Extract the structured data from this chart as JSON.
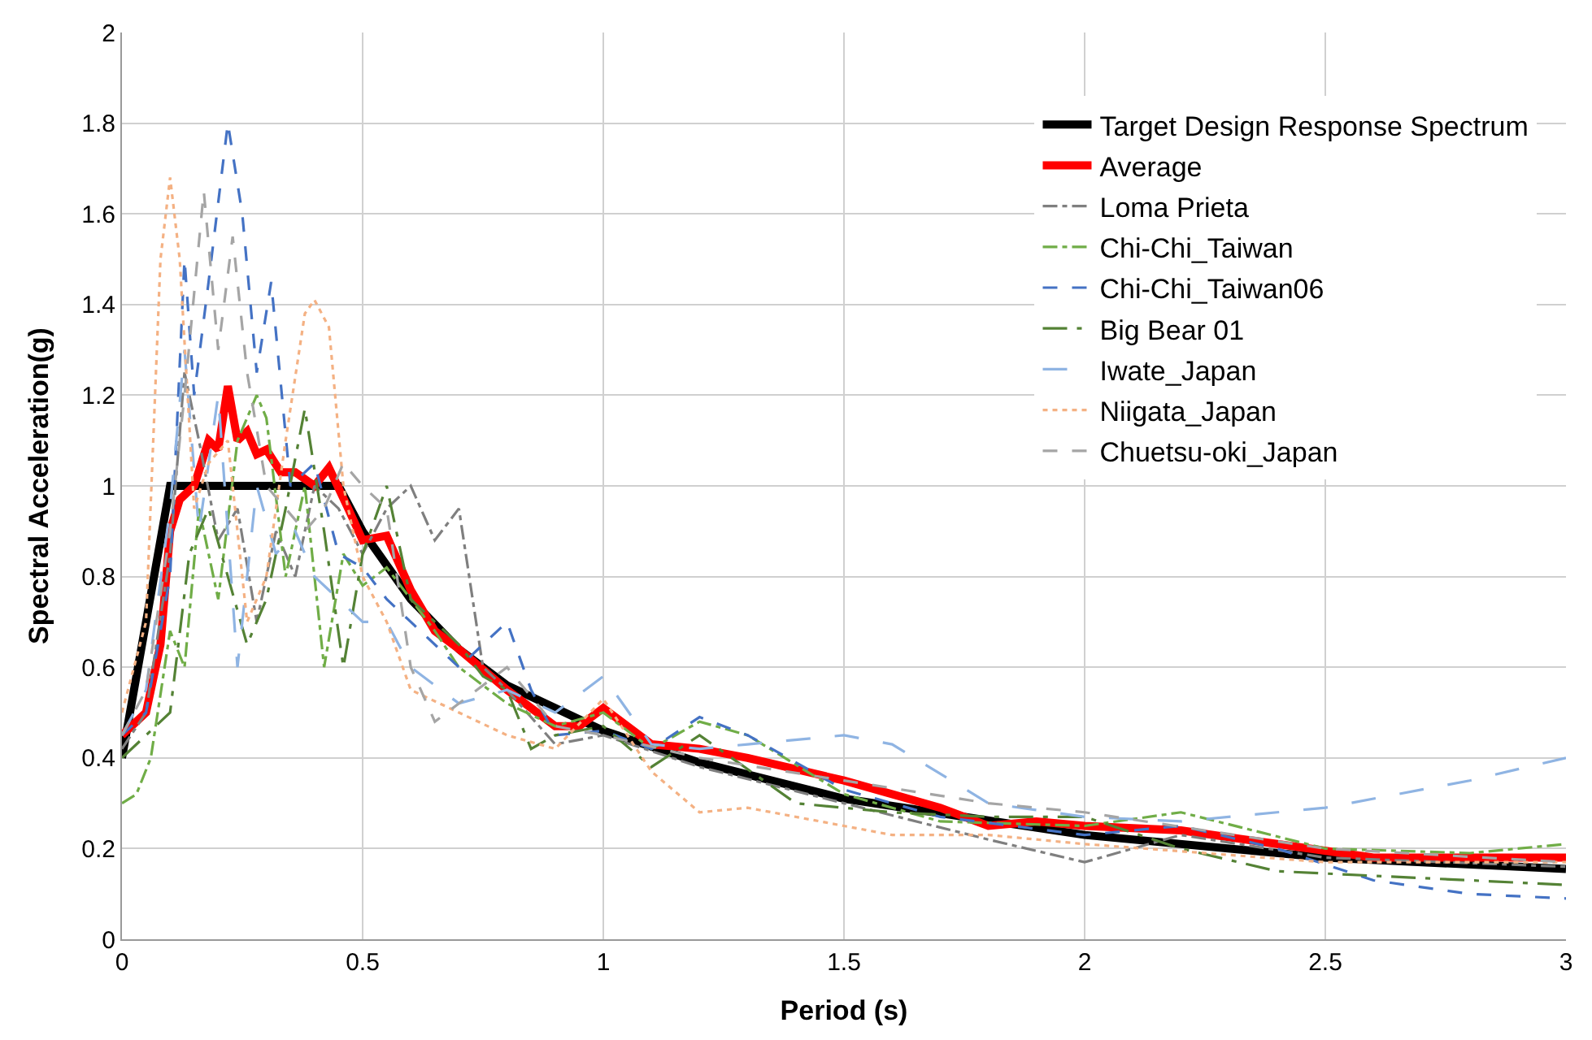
{
  "chart_data": {
    "type": "line",
    "xlabel": "Period (s)",
    "ylabel": "Spectral Acceleration(g)",
    "xlim": [
      0,
      3
    ],
    "ylim": [
      0,
      2
    ],
    "xticks": [
      0,
      0.5,
      1,
      1.5,
      2,
      2.5,
      3
    ],
    "yticks": [
      0,
      0.2,
      0.4,
      0.6,
      0.8,
      1,
      1.2,
      1.4,
      1.6,
      1.8,
      2
    ],
    "grid": true,
    "legend": "top right",
    "marker": "none",
    "series": [
      {
        "name": "Target Design Response Spectrum",
        "color": "#000000",
        "line_style": "solid",
        "x": [
          0,
          0.1,
          0.45,
          0.5,
          0.6,
          0.7,
          0.8,
          1.0,
          1.2,
          1.5,
          2.0,
          2.5,
          3.0
        ],
        "values": [
          0.4,
          1.0,
          1.0,
          0.9,
          0.75,
          0.64,
          0.56,
          0.46,
          0.39,
          0.31,
          0.23,
          0.18,
          0.155
        ]
      },
      {
        "name": "Average",
        "color": "#ff0000",
        "line_style": "solid",
        "x": [
          0,
          0.05,
          0.08,
          0.1,
          0.12,
          0.15,
          0.18,
          0.2,
          0.22,
          0.24,
          0.26,
          0.28,
          0.3,
          0.33,
          0.36,
          0.4,
          0.43,
          0.47,
          0.5,
          0.55,
          0.6,
          0.65,
          0.7,
          0.8,
          0.9,
          0.95,
          1.0,
          1.1,
          1.2,
          1.3,
          1.5,
          1.7,
          1.8,
          1.9,
          2.0,
          2.2,
          2.4,
          2.6,
          3.0
        ],
        "values": [
          0.45,
          0.5,
          0.65,
          0.9,
          0.97,
          1.0,
          1.1,
          1.08,
          1.22,
          1.1,
          1.12,
          1.07,
          1.08,
          1.03,
          1.03,
          1.0,
          1.04,
          0.95,
          0.88,
          0.89,
          0.77,
          0.68,
          0.64,
          0.55,
          0.47,
          0.47,
          0.51,
          0.43,
          0.42,
          0.4,
          0.35,
          0.29,
          0.25,
          0.26,
          0.25,
          0.24,
          0.21,
          0.18,
          0.18
        ]
      },
      {
        "name": "Loma Prieta",
        "color": "#7f7f7f",
        "line_style": "dashdot",
        "x": [
          0,
          0.05,
          0.1,
          0.13,
          0.16,
          0.2,
          0.24,
          0.28,
          0.32,
          0.36,
          0.4,
          0.45,
          0.5,
          0.55,
          0.6,
          0.65,
          0.7,
          0.75,
          0.8,
          0.9,
          1.0,
          1.2,
          1.5,
          1.8,
          2.0,
          2.2,
          2.5,
          3.0
        ],
        "values": [
          0.42,
          0.5,
          0.85,
          1.25,
          1.1,
          0.88,
          0.95,
          0.7,
          0.9,
          0.8,
          1.0,
          0.95,
          0.85,
          0.95,
          1.0,
          0.88,
          0.95,
          0.6,
          0.55,
          0.43,
          0.45,
          0.38,
          0.3,
          0.22,
          0.17,
          0.23,
          0.18,
          0.16
        ]
      },
      {
        "name": "Chi-Chi_Taiwan",
        "color": "#70ad47",
        "line_style": "dashdot",
        "x": [
          0,
          0.03,
          0.06,
          0.1,
          0.13,
          0.16,
          0.2,
          0.24,
          0.28,
          0.3,
          0.34,
          0.38,
          0.42,
          0.46,
          0.5,
          0.55,
          0.6,
          0.65,
          0.7,
          0.8,
          0.9,
          1.0,
          1.1,
          1.2,
          1.3,
          1.5,
          1.7,
          2.0,
          2.2,
          2.5,
          2.8,
          3.0
        ],
        "values": [
          0.3,
          0.32,
          0.4,
          0.68,
          0.6,
          0.95,
          0.75,
          1.1,
          1.2,
          1.15,
          0.8,
          1.0,
          0.6,
          0.85,
          0.78,
          0.82,
          0.75,
          0.68,
          0.6,
          0.52,
          0.47,
          0.5,
          0.42,
          0.48,
          0.45,
          0.32,
          0.26,
          0.25,
          0.28,
          0.2,
          0.19,
          0.21
        ]
      },
      {
        "name": "Chi-Chi_Taiwan06",
        "color": "#4472c4",
        "line_style": "dashed",
        "x": [
          0,
          0.05,
          0.1,
          0.13,
          0.15,
          0.18,
          0.22,
          0.25,
          0.28,
          0.31,
          0.35,
          0.4,
          0.45,
          0.5,
          0.55,
          0.6,
          0.7,
          0.75,
          0.8,
          0.85,
          0.9,
          1.0,
          1.1,
          1.2,
          1.3,
          1.5,
          1.7,
          2.0,
          2.2,
          2.4,
          2.6,
          2.8,
          3.0
        ],
        "values": [
          0.45,
          0.5,
          0.8,
          1.5,
          1.2,
          1.45,
          1.8,
          1.6,
          1.25,
          1.45,
          1.0,
          1.05,
          0.85,
          0.82,
          0.75,
          0.7,
          0.6,
          0.65,
          0.7,
          0.55,
          0.45,
          0.46,
          0.42,
          0.49,
          0.45,
          0.33,
          0.27,
          0.23,
          0.25,
          0.2,
          0.13,
          0.1,
          0.09
        ]
      },
      {
        "name": "Big Bear 01",
        "color": "#548235",
        "line_style": "longdashdot",
        "x": [
          0,
          0.05,
          0.1,
          0.14,
          0.18,
          0.22,
          0.26,
          0.3,
          0.34,
          0.38,
          0.42,
          0.46,
          0.5,
          0.55,
          0.6,
          0.65,
          0.7,
          0.75,
          0.8,
          0.85,
          0.9,
          1.0,
          1.1,
          1.2,
          1.4,
          1.6,
          1.8,
          2.0,
          2.2,
          2.4,
          2.6,
          3.0
        ],
        "values": [
          0.4,
          0.45,
          0.5,
          0.85,
          0.95,
          0.8,
          0.65,
          0.75,
          0.95,
          1.17,
          0.9,
          0.6,
          0.85,
          1.0,
          0.75,
          0.7,
          0.65,
          0.58,
          0.55,
          0.42,
          0.45,
          0.47,
          0.38,
          0.45,
          0.3,
          0.28,
          0.27,
          0.27,
          0.2,
          0.15,
          0.14,
          0.12
        ]
      },
      {
        "name": "Iwate_Japan",
        "color": "#8fb4e3",
        "line_style": "longdash",
        "x": [
          0,
          0.05,
          0.1,
          0.13,
          0.16,
          0.2,
          0.24,
          0.28,
          0.32,
          0.36,
          0.4,
          0.45,
          0.5,
          0.55,
          0.6,
          0.7,
          0.8,
          0.9,
          1.0,
          1.1,
          1.2,
          1.3,
          1.5,
          1.6,
          1.8,
          2.0,
          2.2,
          2.5,
          2.8,
          3.0
        ],
        "values": [
          0.45,
          0.55,
          0.95,
          1.3,
          0.9,
          1.2,
          0.6,
          1.0,
          0.85,
          0.9,
          0.8,
          0.75,
          0.7,
          0.7,
          0.6,
          0.52,
          0.55,
          0.5,
          0.58,
          0.43,
          0.42,
          0.43,
          0.45,
          0.43,
          0.3,
          0.27,
          0.26,
          0.29,
          0.35,
          0.4
        ]
      },
      {
        "name": "Niigata_Japan",
        "color": "#f4b183",
        "line_style": "dotted",
        "x": [
          0,
          0.05,
          0.08,
          0.1,
          0.12,
          0.15,
          0.18,
          0.22,
          0.26,
          0.3,
          0.34,
          0.38,
          0.4,
          0.43,
          0.46,
          0.5,
          0.55,
          0.6,
          0.7,
          0.8,
          0.9,
          1.0,
          1.1,
          1.2,
          1.3,
          1.5,
          1.6,
          1.8,
          2.0,
          2.5,
          3.0
        ],
        "values": [
          0.5,
          0.7,
          1.5,
          1.68,
          1.5,
          0.95,
          1.05,
          1.1,
          0.7,
          0.8,
          1.1,
          1.38,
          1.41,
          1.35,
          1.0,
          0.8,
          0.7,
          0.55,
          0.5,
          0.45,
          0.42,
          0.53,
          0.37,
          0.28,
          0.29,
          0.25,
          0.23,
          0.23,
          0.21,
          0.17,
          0.17
        ]
      },
      {
        "name": "Chuetsu-oki_Japan",
        "color": "#a5a5a5",
        "line_style": "dashed",
        "x": [
          0,
          0.05,
          0.1,
          0.13,
          0.17,
          0.2,
          0.23,
          0.26,
          0.3,
          0.34,
          0.38,
          0.42,
          0.46,
          0.5,
          0.55,
          0.6,
          0.65,
          0.7,
          0.8,
          0.9,
          1.0,
          1.2,
          1.5,
          1.8,
          2.0,
          2.5,
          3.0
        ],
        "values": [
          0.45,
          0.55,
          0.9,
          1.2,
          1.65,
          1.3,
          1.55,
          1.25,
          1.0,
          0.95,
          0.9,
          0.95,
          1.05,
          1.0,
          0.95,
          0.6,
          0.48,
          0.52,
          0.6,
          0.47,
          0.45,
          0.4,
          0.35,
          0.3,
          0.28,
          0.2,
          0.17
        ]
      }
    ]
  }
}
